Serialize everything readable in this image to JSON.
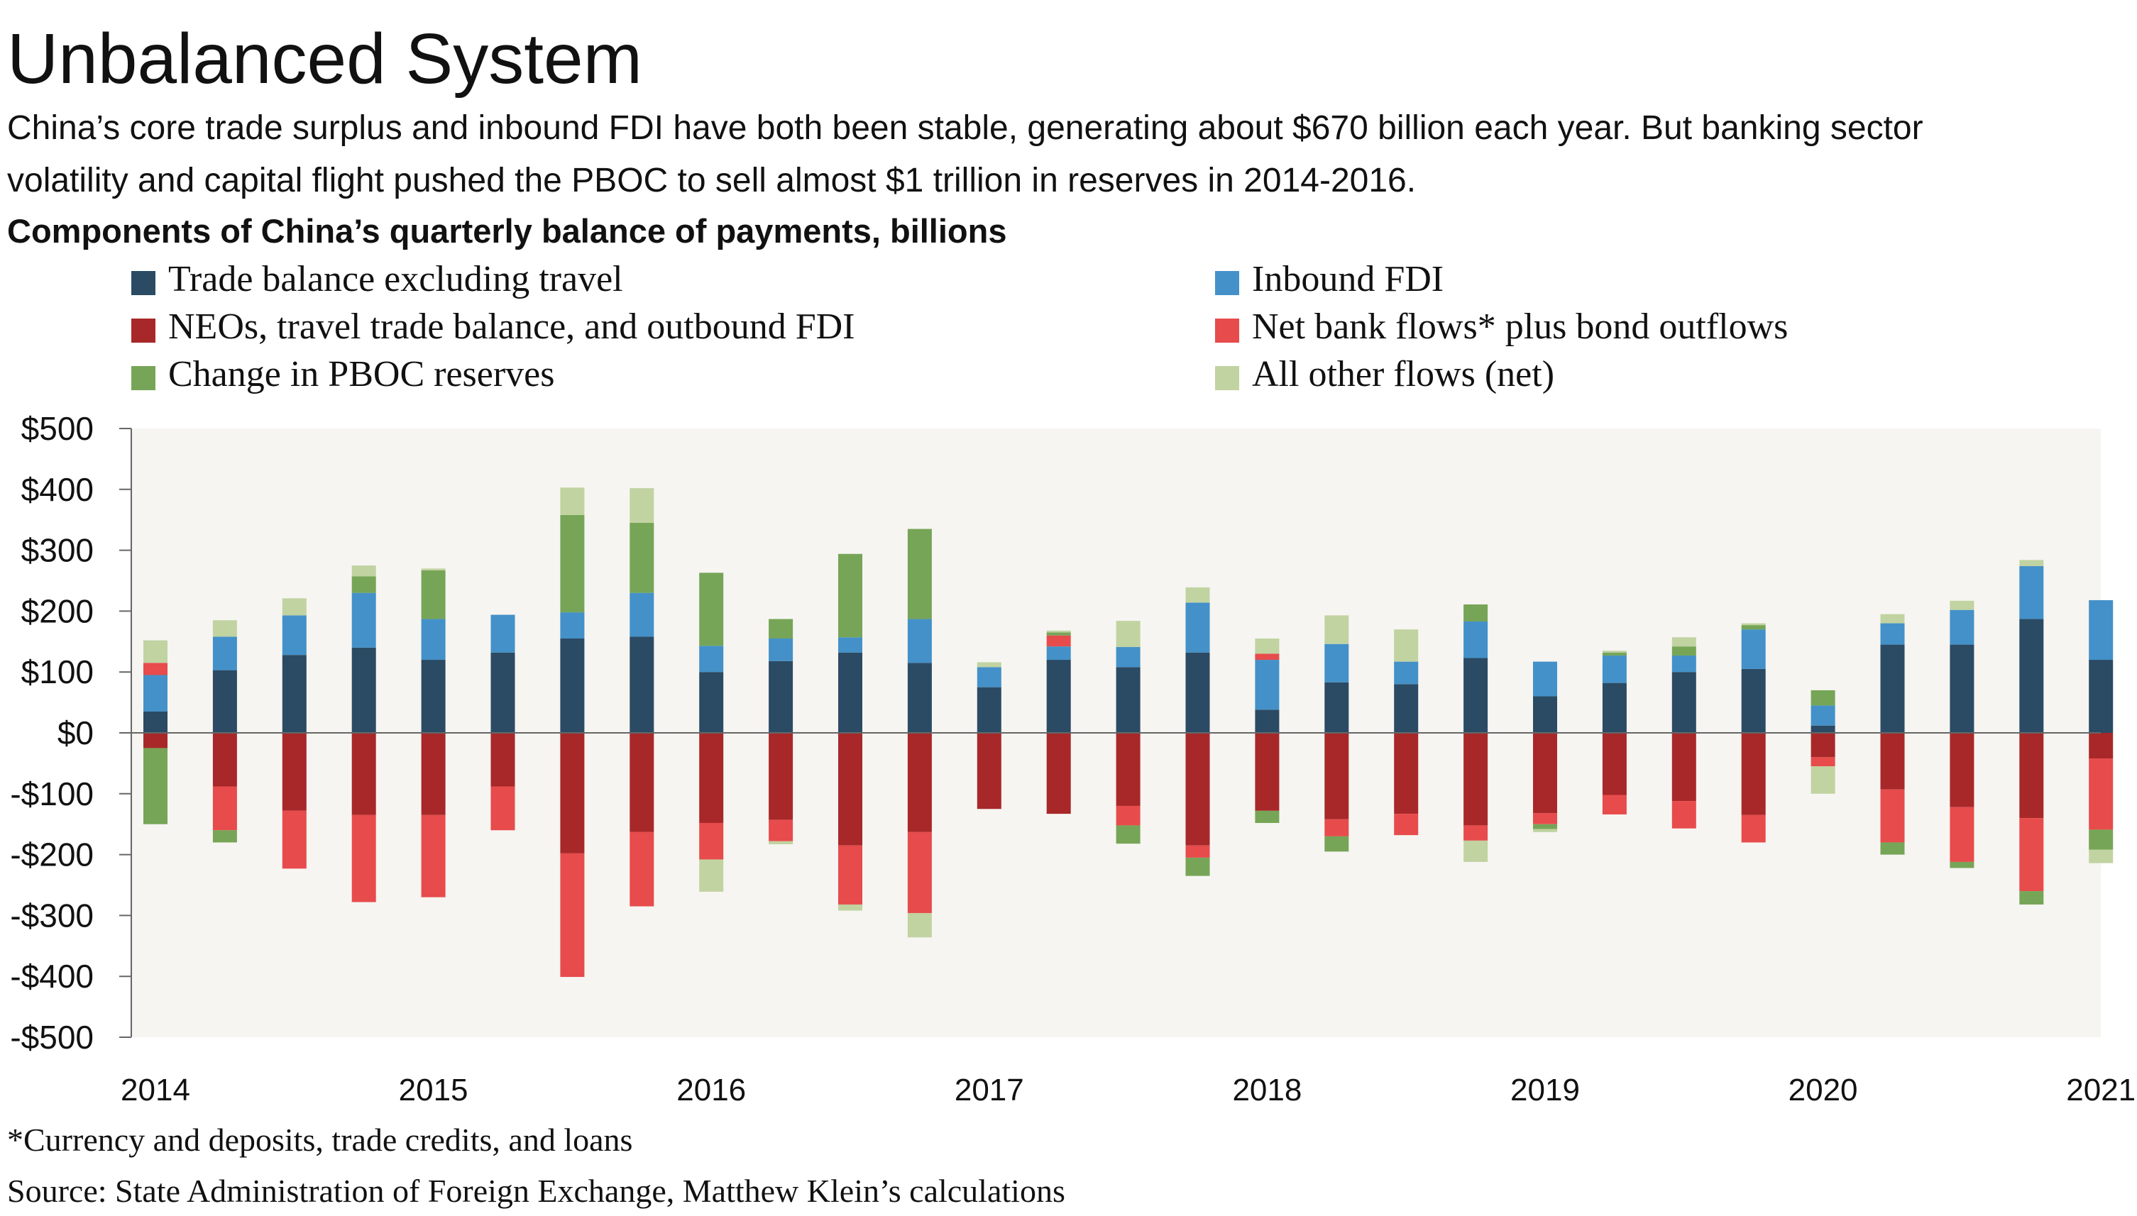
{
  "title": "Unbalanced System",
  "subtitle_lines": [
    "China’s core trade surplus and inbound FDI have both been stable, generating about $670 billion each year. But banking sector",
    "volatility and capital flight pushed the PBOC to sell almost $1 trillion in reserves in 2014-2016."
  ],
  "chart_title": "Components of China’s quarterly balance of payments, billions",
  "footnote": "*Currency and deposits, trade credits, and loans",
  "source": "Source: State Administration of Foreign Exchange, Matthew Klein’s calculations",
  "chart_data": {
    "type": "bar",
    "stacked": true,
    "ylim": [
      -500,
      500
    ],
    "ytick_values": [
      500,
      400,
      300,
      200,
      100,
      0,
      -100,
      -200,
      -300,
      -400,
      -500
    ],
    "ytick_labels": [
      "$500",
      "$400",
      "$300",
      "$200",
      "$100",
      "$0",
      "-$100",
      "-$200",
      "-$300",
      "-$400",
      "-$500"
    ],
    "xtick_labels": [
      "2014",
      "2015",
      "2016",
      "2017",
      "2018",
      "2019",
      "2020",
      "2021"
    ],
    "categories": [
      "2014Q1",
      "2014Q2",
      "2014Q3",
      "2014Q4",
      "2015Q1",
      "2015Q2",
      "2015Q3",
      "2015Q4",
      "2016Q1",
      "2016Q2",
      "2016Q3",
      "2016Q4",
      "2017Q1",
      "2017Q2",
      "2017Q3",
      "2017Q4",
      "2018Q1",
      "2018Q2",
      "2018Q3",
      "2018Q4",
      "2019Q1",
      "2019Q2",
      "2019Q3",
      "2019Q4",
      "2020Q1",
      "2020Q2",
      "2020Q3",
      "2020Q4",
      "2021Q1"
    ],
    "grid": false,
    "legend_position": "top",
    "plot_background": "#f6f5f1",
    "series": [
      {
        "name": "Trade balance excluding travel",
        "color": "#2b4a63",
        "values": [
          35,
          103,
          128,
          140,
          120,
          132,
          155,
          158,
          100,
          118,
          132,
          115,
          75,
          120,
          108,
          132,
          38,
          83,
          80,
          123,
          60,
          82,
          100,
          105,
          12,
          145,
          145,
          187,
          120
        ]
      },
      {
        "name": "Inbound FDI",
        "color": "#4391c8",
        "values": [
          60,
          55,
          65,
          90,
          67,
          62,
          43,
          72,
          43,
          37,
          25,
          72,
          33,
          22,
          33,
          82,
          82,
          63,
          37,
          60,
          57,
          45,
          27,
          65,
          33,
          35,
          57,
          87,
          98
        ]
      },
      {
        "name": "NEOs, travel trade balance, and outbound FDI",
        "color": "#a8282a",
        "values": [
          -25,
          -88,
          -128,
          -135,
          -135,
          -88,
          -198,
          -163,
          -148,
          -143,
          -185,
          -163,
          -125,
          -133,
          -120,
          -185,
          -128,
          -142,
          -133,
          -152,
          -132,
          -102,
          -112,
          -135,
          -40,
          -93,
          -122,
          -140,
          -42
        ]
      },
      {
        "name": "Net bank flows* plus bond outflows",
        "color": "#e84b4b",
        "values": [
          20,
          -72,
          -95,
          -143,
          -135,
          -72,
          -203,
          -122,
          -60,
          -35,
          -97,
          -133,
          0,
          18,
          -32,
          -20,
          10,
          -28,
          -35,
          -25,
          -18,
          -32,
          -45,
          -45,
          -15,
          -87,
          -90,
          -120,
          -117
        ]
      },
      {
        "name": "Change in PBOC reserves",
        "color": "#77a557",
        "values": [
          -125,
          -20,
          0,
          27,
          80,
          0,
          160,
          115,
          120,
          32,
          137,
          148,
          0,
          5,
          -30,
          -30,
          -20,
          -25,
          0,
          28,
          -8,
          5,
          15,
          7,
          25,
          -20,
          -10,
          -22,
          -33
        ]
      },
      {
        "name": "All other flows (net)",
        "color": "#c2d3a2",
        "values": [
          37,
          27,
          28,
          18,
          3,
          0,
          45,
          57,
          -53,
          -5,
          -10,
          -40,
          8,
          3,
          43,
          25,
          25,
          47,
          53,
          -35,
          -5,
          3,
          15,
          3,
          -45,
          15,
          15,
          10,
          -22
        ]
      }
    ]
  }
}
